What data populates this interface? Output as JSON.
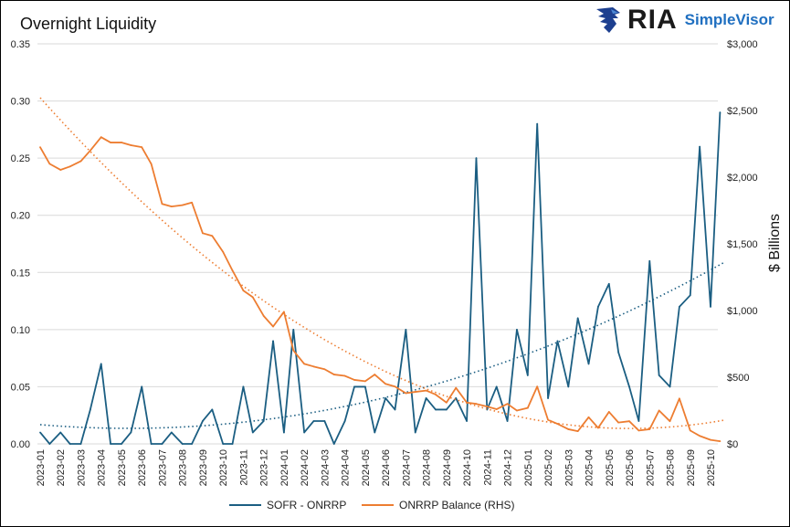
{
  "title": "Overnight Liquidity",
  "logo": {
    "mark": "RIA",
    "brand": "SimpleVisor"
  },
  "chart_data": {
    "type": "line",
    "title": "Overnight Liquidity",
    "xlabel": "",
    "ylabel_left": "",
    "ylabel_right": "$ Billions",
    "ylim_left": [
      0,
      0.35
    ],
    "ylim_right": [
      0,
      3000
    ],
    "yticks_left": [
      "0.00",
      "0.05",
      "0.10",
      "0.15",
      "0.20",
      "0.25",
      "0.30",
      "0.35"
    ],
    "yticks_right": [
      "$0",
      "$500",
      "$1,000",
      "$1,500",
      "$2,000",
      "$2,500",
      "$3,000"
    ],
    "xticks": [
      "2023-01",
      "2023-02",
      "2023-03",
      "2023-04",
      "2023-05",
      "2023-06",
      "2023-07",
      "2023-08",
      "2023-09",
      "2023-10",
      "2023-11",
      "2023-12",
      "2024-01",
      "2024-02",
      "2024-03",
      "2024-04",
      "2024-05",
      "2024-06",
      "2024-07",
      "2024-08",
      "2024-09",
      "2024-10",
      "2024-11",
      "2024-12",
      "2025-01",
      "2025-02",
      "2025-03",
      "2025-04",
      "2025-05",
      "2025-06",
      "2025-07",
      "2025-08",
      "2025-09",
      "2025-10"
    ],
    "grid": "horizontal",
    "legend": "bottom",
    "x": [
      "2023-01-01",
      "2023-01-15",
      "2023-02-01",
      "2023-02-15",
      "2023-03-01",
      "2023-03-15",
      "2023-04-01",
      "2023-04-15",
      "2023-05-01",
      "2023-05-15",
      "2023-06-01",
      "2023-06-15",
      "2023-07-01",
      "2023-07-15",
      "2023-08-01",
      "2023-08-15",
      "2023-09-01",
      "2023-09-15",
      "2023-10-01",
      "2023-10-15",
      "2023-11-01",
      "2023-11-15",
      "2023-12-01",
      "2023-12-15",
      "2024-01-01",
      "2024-01-15",
      "2024-02-01",
      "2024-02-15",
      "2024-03-01",
      "2024-03-15",
      "2024-04-01",
      "2024-04-15",
      "2024-05-01",
      "2024-05-15",
      "2024-06-01",
      "2024-06-15",
      "2024-07-01",
      "2024-07-15",
      "2024-08-01",
      "2024-08-15",
      "2024-09-01",
      "2024-09-15",
      "2024-10-01",
      "2024-10-15",
      "2024-11-01",
      "2024-11-15",
      "2024-12-01",
      "2024-12-15",
      "2025-01-01",
      "2025-01-15",
      "2025-02-01",
      "2025-02-15",
      "2025-03-01",
      "2025-03-15",
      "2025-04-01",
      "2025-04-15",
      "2025-05-01",
      "2025-05-15",
      "2025-06-01",
      "2025-06-15",
      "2025-07-01",
      "2025-07-15",
      "2025-08-01",
      "2025-08-15",
      "2025-09-01",
      "2025-09-15",
      "2025-10-01",
      "2025-10-15"
    ],
    "series": [
      {
        "name": "SOFR - ONRRP",
        "axis": "left",
        "color": "#1b5e82",
        "trendline": "polynomial",
        "values": [
          0.01,
          0.0,
          0.01,
          0.0,
          0.0,
          0.03,
          0.07,
          0.0,
          0.0,
          0.01,
          0.05,
          0.0,
          0.0,
          0.01,
          0.0,
          0.0,
          0.02,
          0.03,
          0.0,
          0.0,
          0.05,
          0.01,
          0.02,
          0.09,
          0.01,
          0.1,
          0.01,
          0.02,
          0.02,
          0.0,
          0.02,
          0.05,
          0.05,
          0.01,
          0.04,
          0.03,
          0.1,
          0.01,
          0.04,
          0.03,
          0.03,
          0.04,
          0.02,
          0.25,
          0.03,
          0.05,
          0.02,
          0.1,
          0.06,
          0.28,
          0.04,
          0.09,
          0.05,
          0.11,
          0.07,
          0.12,
          0.14,
          0.08,
          0.05,
          0.02,
          0.16,
          0.06,
          0.05,
          0.12,
          0.13,
          0.26,
          0.12,
          0.29
        ]
      },
      {
        "name": "ONRRP Balance (RHS)",
        "axis": "right",
        "color": "#ed7d31",
        "trendline": "polynomial",
        "values": [
          2225,
          2100,
          2055,
          2080,
          2120,
          2200,
          2300,
          2260,
          2260,
          2240,
          2225,
          2100,
          1800,
          1780,
          1790,
          1810,
          1580,
          1560,
          1440,
          1300,
          1150,
          1100,
          960,
          880,
          990,
          700,
          600,
          580,
          560,
          520,
          510,
          480,
          470,
          520,
          450,
          430,
          380,
          390,
          400,
          370,
          310,
          420,
          310,
          300,
          280,
          260,
          300,
          250,
          270,
          430,
          180,
          150,
          110,
          95,
          200,
          120,
          240,
          160,
          170,
          100,
          110,
          250,
          170,
          340,
          100,
          60,
          30,
          20
        ]
      }
    ]
  }
}
